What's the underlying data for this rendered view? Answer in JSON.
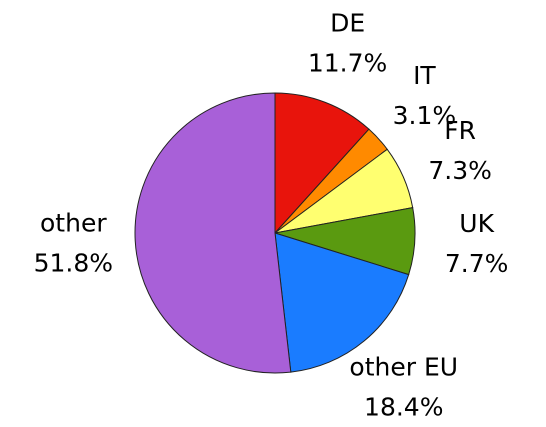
{
  "chart_data": {
    "type": "pie",
    "categories": [
      "DE",
      "IT",
      "FR",
      "UK",
      "other EU",
      "other"
    ],
    "values": [
      11.7,
      3.1,
      7.3,
      7.7,
      18.4,
      51.8
    ],
    "value_labels": [
      "11.7%",
      "3.1%",
      "7.3%",
      "7.7%",
      "18.4%",
      "51.8%"
    ],
    "colors": [
      "#e8140c",
      "#ff8a00",
      "#ffff70",
      "#5a9a10",
      "#1a7cff",
      "#a860d8"
    ]
  }
}
